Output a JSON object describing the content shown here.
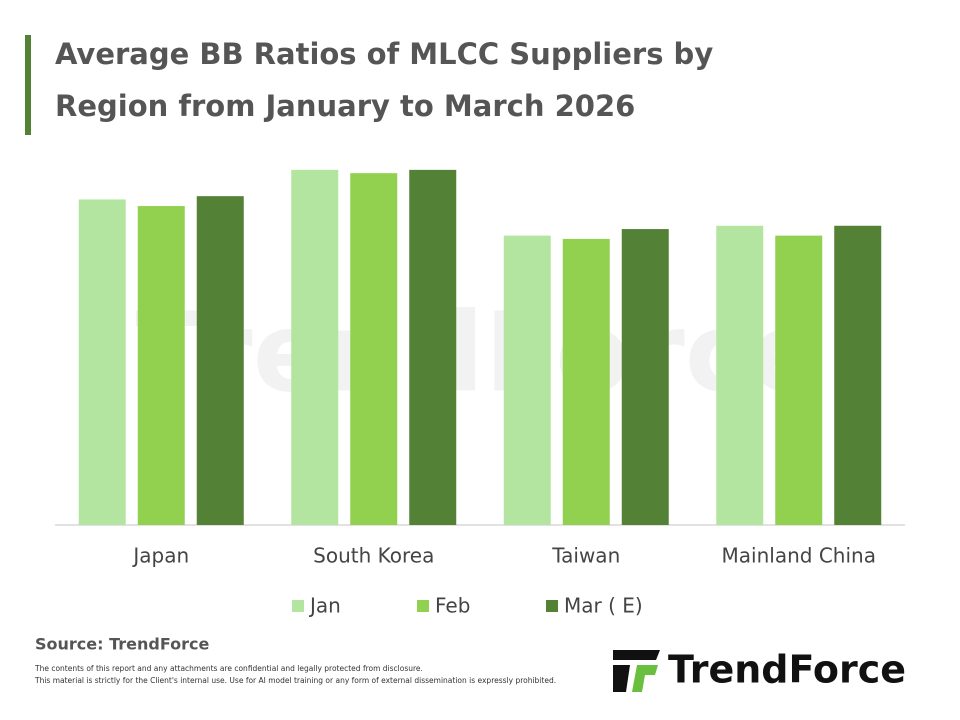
{
  "chart_data": {
    "type": "bar",
    "title": "Average BB Ratios of MLCC Suppliers by Region from January to March 2026",
    "title_lines": [
      "Average BB Ratios of MLCC Suppliers by",
      "Region from January to March 2026"
    ],
    "categories": [
      "Japan",
      "South Korea",
      "Taiwan",
      "Mainland China"
    ],
    "series": [
      {
        "name": "Jan",
        "color": "#b3e5a1",
        "values": [
          0.99,
          1.08,
          0.88,
          0.91
        ]
      },
      {
        "name": "Feb",
        "color": "#92d050",
        "values": [
          0.97,
          1.07,
          0.87,
          0.88
        ]
      },
      {
        "name": "Mar ( E)",
        "color": "#538135",
        "values": [
          1.0,
          1.08,
          0.9,
          0.91
        ]
      }
    ],
    "ylim": [
      0,
      1.11
    ],
    "legend": "bottom",
    "source": "Source: TrendForce",
    "disclaimer": [
      "The contents of this report and any attachments are confidential and legally protected from disclosure.",
      "This material is strictly for the Client's internal use. Use for AI model training or any form of external dissemination is expressly prohibited."
    ],
    "logo": "TrendForce"
  }
}
